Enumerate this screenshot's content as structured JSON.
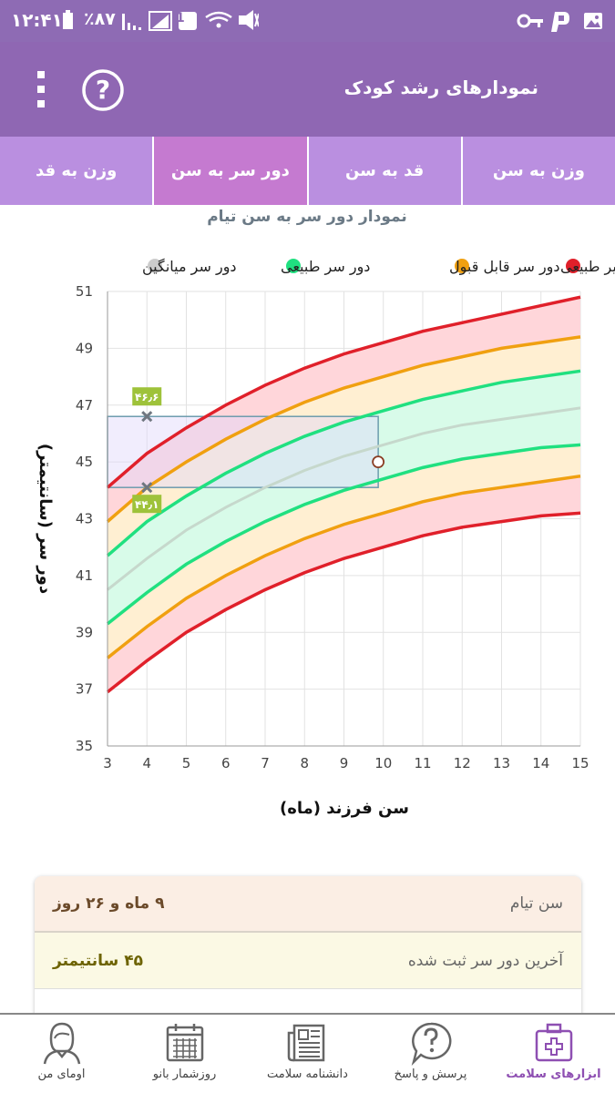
{
  "status_bar": {
    "time": "۱۲:۴۱",
    "battery": "٪۸۷",
    "sim_badge": "1"
  },
  "app_bar": {
    "title": "نمودارهای رشد کودک",
    "help_glyph": "?"
  },
  "tabs": [
    {
      "label": "وزن به سن",
      "active": false
    },
    {
      "label": "قد به سن",
      "active": false
    },
    {
      "label": "دور سر به سن",
      "active": true
    },
    {
      "label": "وزن به قد",
      "active": false
    }
  ],
  "chart_data": {
    "type": "line",
    "title": "نمودار دور سر به سن تیام",
    "xlabel": "سن فرزند (ماه)",
    "ylabel": "دور سر (سانتیمتر)",
    "xlim": [
      3,
      15
    ],
    "ylim": [
      35,
      51
    ],
    "x_ticks": [
      "3",
      "4",
      "5",
      "6",
      "7",
      "8",
      "9",
      "10",
      "11",
      "12",
      "13",
      "14",
      "15"
    ],
    "y_ticks": [
      "35",
      "37",
      "39",
      "41",
      "43",
      "45",
      "47",
      "49",
      "51"
    ],
    "legend": [
      {
        "label": "غیر طبیعی",
        "color": "#e0202a"
      },
      {
        "label": "دور سر قابل قبول",
        "color": "#f0a010"
      },
      {
        "label": "دور سر طبیعی",
        "color": "#20e080"
      },
      {
        "label": "دور سر میانگین",
        "color": "#cccccc"
      }
    ],
    "legend_position": "top",
    "grid": true,
    "x": [
      3,
      4,
      5,
      6,
      7,
      8,
      9,
      10,
      11,
      12,
      13,
      14,
      15
    ],
    "series": [
      {
        "key": "red_upper",
        "color": "#e0202a",
        "values": [
          44.1,
          45.3,
          46.2,
          47.0,
          47.7,
          48.3,
          48.8,
          49.2,
          49.6,
          49.9,
          50.2,
          50.5,
          50.8
        ]
      },
      {
        "key": "orange_upper",
        "color": "#f0a010",
        "values": [
          42.9,
          44.1,
          45.0,
          45.8,
          46.5,
          47.1,
          47.6,
          48.0,
          48.4,
          48.7,
          49.0,
          49.2,
          49.4
        ]
      },
      {
        "key": "green_upper",
        "color": "#20e080",
        "values": [
          41.7,
          42.9,
          43.8,
          44.6,
          45.3,
          45.9,
          46.4,
          46.8,
          47.2,
          47.5,
          47.8,
          48.0,
          48.2
        ]
      },
      {
        "key": "average",
        "color": "#c6d8cc",
        "values": [
          40.5,
          41.6,
          42.6,
          43.4,
          44.1,
          44.7,
          45.2,
          45.6,
          46.0,
          46.3,
          46.5,
          46.7,
          46.9
        ]
      },
      {
        "key": "green_lower",
        "color": "#20e080",
        "values": [
          39.3,
          40.4,
          41.4,
          42.2,
          42.9,
          43.5,
          44.0,
          44.4,
          44.8,
          45.1,
          45.3,
          45.5,
          45.6
        ]
      },
      {
        "key": "orange_lower",
        "color": "#f0a010",
        "values": [
          38.1,
          39.2,
          40.2,
          41.0,
          41.7,
          42.3,
          42.8,
          43.2,
          43.6,
          43.9,
          44.1,
          44.3,
          44.5
        ]
      },
      {
        "key": "red_lower",
        "color": "#e0202a",
        "values": [
          36.9,
          38.0,
          39.0,
          39.8,
          40.5,
          41.1,
          41.6,
          42.0,
          42.4,
          42.7,
          42.9,
          43.1,
          43.2
        ]
      }
    ],
    "band_fills": [
      "#ffd6da",
      "#ffefd2",
      "#d8fbe9"
    ],
    "measurement": {
      "x": 9.87,
      "y": 45
    },
    "selection_box": {
      "x0": 3,
      "x1": 9.87,
      "y0": 44.1,
      "y1": 46.6
    },
    "markers": [
      {
        "x": 4,
        "y": 46.6,
        "label": "۴۶٫۶"
      },
      {
        "x": 4,
        "y": 44.1,
        "label": "۴۴٫۱"
      }
    ]
  },
  "info": {
    "age_label": "سن تیام",
    "age_value": "۹ ماه و ۲۶ روز",
    "head_label": "آخرین دور سر ثبت شده",
    "head_value": "۴۵ سانتیمتر"
  },
  "nav": [
    {
      "label": "ابزارهای سلامت",
      "icon": "medical-kit-icon",
      "active": true
    },
    {
      "label": "پرسش و پاسخ",
      "icon": "question-bubble-icon",
      "active": false
    },
    {
      "label": "دانشنامه سلامت",
      "icon": "newspaper-icon",
      "active": false
    },
    {
      "label": "روزشمار بانو",
      "icon": "calendar-icon",
      "active": false
    },
    {
      "label": "اومای من",
      "icon": "user-avatar-icon",
      "active": false
    }
  ]
}
